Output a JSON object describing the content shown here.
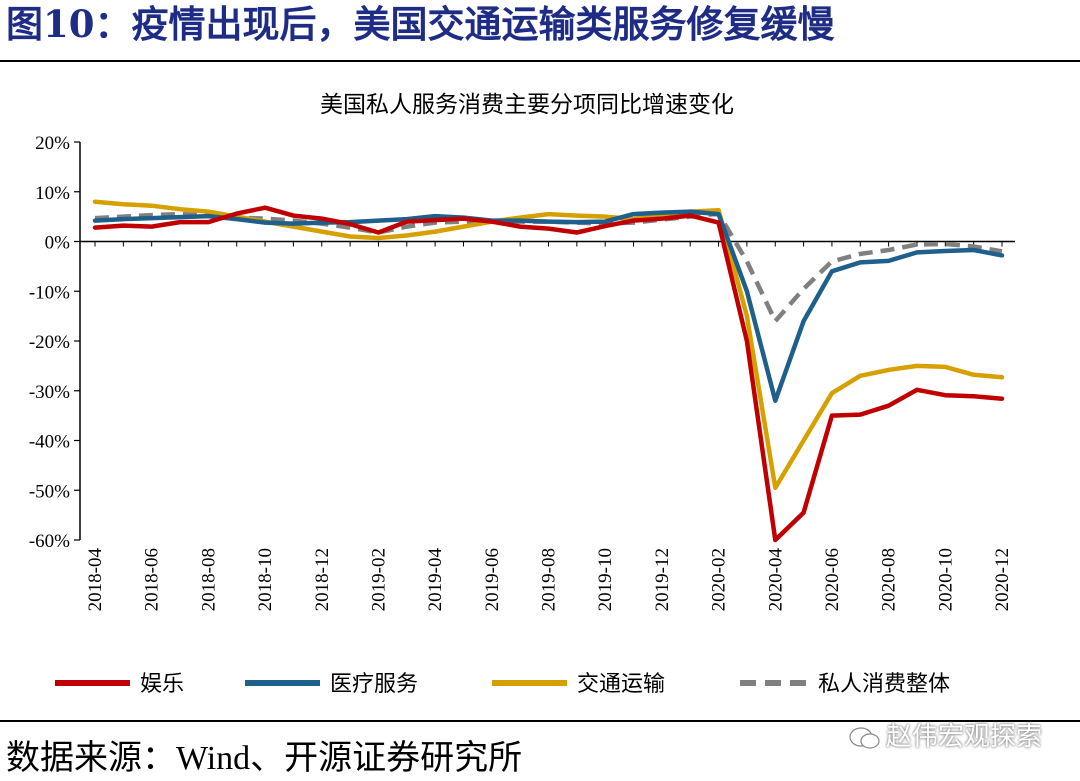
{
  "figure_title": "图10：疫情出现后，美国交通运输类服务修复缓慢",
  "source": "数据来源：Wind、开源证券研究所",
  "watermark": "赵伟宏观探索",
  "colors": {
    "title": "#1f2c86",
    "entertainment": "#c00000",
    "medical": "#1f5f8b",
    "transport": "#d6a000",
    "overall": "#808080"
  },
  "chart_data": {
    "type": "line",
    "title": "美国私人服务消费主要分项同比增速变化",
    "xlabel": "",
    "ylabel": "",
    "ylim": [
      -60,
      20
    ],
    "yticks": [
      "20%",
      "10%",
      "0%",
      "-10%",
      "-20%",
      "-30%",
      "-40%",
      "-50%",
      "-60%"
    ],
    "ytick_values": [
      20,
      10,
      0,
      -10,
      -20,
      -30,
      -40,
      -50,
      -60
    ],
    "x": [
      "2018-04",
      "2018-05",
      "2018-06",
      "2018-07",
      "2018-08",
      "2018-09",
      "2018-10",
      "2018-11",
      "2018-12",
      "2019-01",
      "2019-02",
      "2019-03",
      "2019-04",
      "2019-05",
      "2019-06",
      "2019-07",
      "2019-08",
      "2019-09",
      "2019-10",
      "2019-11",
      "2019-12",
      "2020-01",
      "2020-02",
      "2020-03",
      "2020-04",
      "2020-05",
      "2020-06",
      "2020-07",
      "2020-08",
      "2020-09",
      "2020-10",
      "2020-11",
      "2020-12"
    ],
    "xtick_labels": [
      "2018-04",
      "2018-06",
      "2018-08",
      "2018-10",
      "2018-12",
      "2019-02",
      "2019-04",
      "2019-06",
      "2019-08",
      "2019-10",
      "2019-12",
      "2020-02",
      "2020-04",
      "2020-06",
      "2020-08",
      "2020-10",
      "2020-12"
    ],
    "legend_position": "bottom",
    "series": [
      {
        "name": "娱乐",
        "color": "#c00000",
        "dash": false,
        "values": [
          2.8,
          3.2,
          3.0,
          3.9,
          3.9,
          5.6,
          6.8,
          5.2,
          4.6,
          3.5,
          1.8,
          4.0,
          4.3,
          4.6,
          4.0,
          3.0,
          2.6,
          1.8,
          3.1,
          4.2,
          4.6,
          5.2,
          3.8,
          -20.0,
          -60.0,
          -54.5,
          -35.0,
          -34.8,
          -33.0,
          -29.8,
          -30.9,
          -31.1,
          -31.6
        ]
      },
      {
        "name": "医疗服务",
        "color": "#1f5f8b",
        "dash": false,
        "values": [
          4.2,
          4.5,
          4.7,
          4.9,
          5.1,
          4.5,
          3.8,
          3.6,
          3.8,
          3.9,
          4.2,
          4.5,
          5.1,
          4.8,
          4.2,
          4.2,
          4.0,
          3.9,
          4.0,
          5.5,
          5.8,
          6.0,
          5.5,
          -10.0,
          -32.0,
          -16.0,
          -6.0,
          -4.2,
          -3.9,
          -2.2,
          -1.9,
          -1.7,
          -2.8
        ]
      },
      {
        "name": "交通运输",
        "color": "#d6a000",
        "dash": false,
        "values": [
          8.0,
          7.5,
          7.2,
          6.5,
          6.0,
          5.0,
          4.0,
          3.0,
          2.0,
          1.0,
          0.7,
          1.2,
          2.0,
          3.0,
          4.0,
          4.8,
          5.5,
          5.2,
          5.0,
          4.5,
          5.5,
          6.0,
          6.3,
          -15.0,
          -49.5,
          -40.0,
          -30.5,
          -27.0,
          -25.8,
          -25.0,
          -25.2,
          -26.8,
          -27.3
        ]
      },
      {
        "name": "私人消费整体",
        "color": "#808080",
        "dash": true,
        "values": [
          4.7,
          5.0,
          5.3,
          5.5,
          5.3,
          4.8,
          4.6,
          4.2,
          3.6,
          2.8,
          1.8,
          3.0,
          3.8,
          4.0,
          4.0,
          4.0,
          4.0,
          3.8,
          3.6,
          3.8,
          4.4,
          5.0,
          5.6,
          -4.0,
          -16.0,
          -9.5,
          -4.0,
          -2.5,
          -1.7,
          -0.6,
          -0.5,
          -1.0,
          -2.0
        ]
      }
    ]
  }
}
